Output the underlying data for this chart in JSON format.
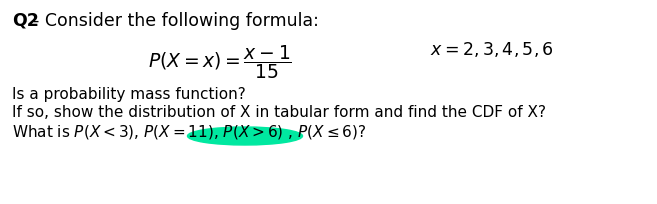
{
  "bg_color": "#ffffff",
  "title_bold": "Q2",
  "title_dash_rest": "- Consider the following formula:",
  "formula_px_left": "$P(X = x) = \\dfrac{x - 1}{15}$",
  "formula_px_right": "$x = 2,3,4,5,6$",
  "line1": "Is a probability mass function?",
  "line2": "If so, show the distribution of X in tabular form and find the CDF of X?",
  "line3": "What is $P(X < 3)$, $P(X = 11)$, $P(X > 6)$ , $P(X \\leq 6)$?",
  "highlight_color": "#00e8a0",
  "fs_title": 12.5,
  "fs_formula": 12.5,
  "fs_body": 11.0
}
